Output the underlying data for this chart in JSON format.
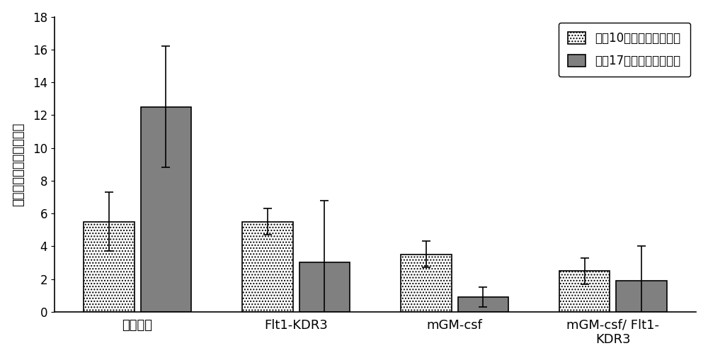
{
  "categories": [
    "生理盐水",
    "Flt1-KDR3",
    "mGM-csf",
    "mGM-csf/ Flt1-\nKDR3"
  ],
  "bar1_values": [
    5.5,
    5.5,
    3.5,
    2.5
  ],
  "bar1_errors": [
    1.8,
    0.8,
    0.8,
    0.8
  ],
  "bar2_values": [
    12.5,
    3.0,
    0.9,
    1.9
  ],
  "bar2_errors": [
    3.7,
    3.8,
    0.6,
    2.1
  ],
  "bar1_label": "治疗10天后肺转移瘤数目",
  "bar2_label": "治疗17天后肺转移瘤数目",
  "ylabel": "肺转移瘤病灶数目（个）",
  "ylim": [
    0,
    18
  ],
  "yticks": [
    0,
    2,
    4,
    6,
    8,
    10,
    12,
    14,
    16,
    18
  ],
  "bar1_color": "#ffffff",
  "bar2_color": "#808080",
  "bar1_hatch": "....",
  "bar_edgecolor": "#000000",
  "background_color": "#ffffff",
  "figsize": [
    10,
    5.05
  ],
  "dpi": 100
}
